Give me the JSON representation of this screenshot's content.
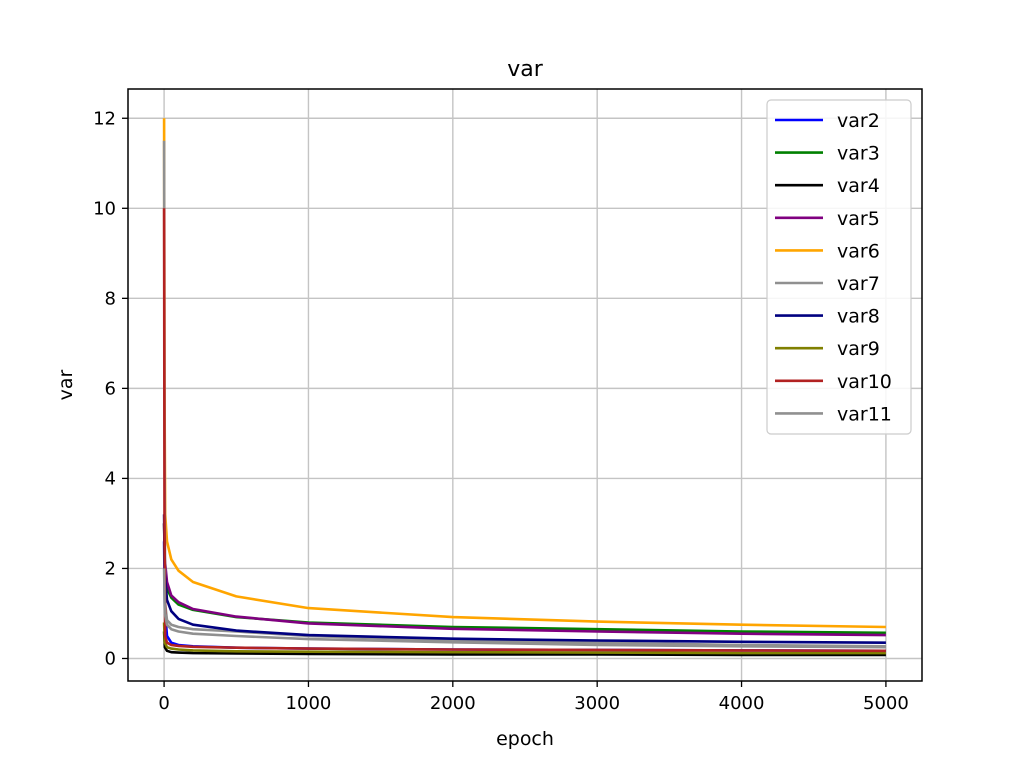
{
  "chart_data": {
    "type": "line",
    "title": "var",
    "xlabel": "epoch",
    "ylabel": "var",
    "xlim": [
      -250,
      5250
    ],
    "ylim": [
      -0.5,
      12.65
    ],
    "xticks": [
      "0",
      "1000",
      "2000",
      "3000",
      "4000",
      "5000"
    ],
    "yticks": [
      "0",
      "2",
      "4",
      "6",
      "8",
      "10",
      "12"
    ],
    "xtick_values": [
      0,
      1000,
      2000,
      3000,
      4000,
      5000
    ],
    "ytick_values": [
      0,
      2,
      4,
      6,
      8,
      10,
      12
    ],
    "grid": true,
    "legend_position": "upper right",
    "series": [
      {
        "name": "var2",
        "color": "#0000ff",
        "x": [
          0,
          5,
          20,
          50,
          100,
          200,
          500,
          1000,
          2000,
          3000,
          4000,
          5000
        ],
        "y": [
          2.6,
          1.1,
          0.5,
          0.35,
          0.3,
          0.27,
          0.24,
          0.22,
          0.2,
          0.19,
          0.18,
          0.17
        ]
      },
      {
        "name": "var3",
        "color": "#008000",
        "x": [
          0,
          5,
          20,
          50,
          100,
          200,
          500,
          1000,
          2000,
          3000,
          4000,
          5000
        ],
        "y": [
          3.0,
          2.0,
          1.55,
          1.35,
          1.2,
          1.08,
          0.92,
          0.8,
          0.7,
          0.65,
          0.6,
          0.57
        ]
      },
      {
        "name": "var4",
        "color": "#000000",
        "x": [
          0,
          5,
          20,
          50,
          100,
          200,
          500,
          1000,
          2000,
          3000,
          4000,
          5000
        ],
        "y": [
          0.6,
          0.25,
          0.17,
          0.14,
          0.13,
          0.12,
          0.11,
          0.1,
          0.09,
          0.09,
          0.08,
          0.08
        ]
      },
      {
        "name": "var5",
        "color": "#800080",
        "x": [
          0,
          5,
          20,
          50,
          100,
          200,
          500,
          1000,
          2000,
          3000,
          4000,
          5000
        ],
        "y": [
          3.0,
          2.2,
          1.7,
          1.4,
          1.25,
          1.1,
          0.93,
          0.78,
          0.66,
          0.6,
          0.55,
          0.52
        ]
      },
      {
        "name": "var6",
        "color": "#ffa500",
        "x": [
          0,
          3,
          8,
          20,
          50,
          100,
          200,
          500,
          1000,
          2000,
          3000,
          4000,
          5000
        ],
        "y": [
          12.0,
          6.0,
          3.2,
          2.6,
          2.2,
          1.95,
          1.7,
          1.38,
          1.12,
          0.92,
          0.82,
          0.75,
          0.7
        ]
      },
      {
        "name": "var7",
        "color": "#909090",
        "x": [
          0,
          3,
          8,
          20,
          50,
          100,
          200,
          500,
          1000,
          2000,
          3000,
          4000,
          5000
        ],
        "y": [
          11.5,
          5.0,
          1.2,
          0.85,
          0.75,
          0.7,
          0.65,
          0.6,
          0.5,
          0.4,
          0.35,
          0.3,
          0.27
        ]
      },
      {
        "name": "var8",
        "color": "#000080",
        "x": [
          0,
          5,
          20,
          50,
          100,
          200,
          500,
          1000,
          2000,
          3000,
          4000,
          5000
        ],
        "y": [
          3.2,
          1.9,
          1.3,
          1.05,
          0.88,
          0.75,
          0.62,
          0.52,
          0.44,
          0.4,
          0.37,
          0.35
        ]
      },
      {
        "name": "var9",
        "color": "#808000",
        "x": [
          0,
          5,
          20,
          50,
          100,
          200,
          500,
          1000,
          2000,
          3000,
          4000,
          5000
        ],
        "y": [
          0.8,
          0.35,
          0.25,
          0.22,
          0.2,
          0.18,
          0.16,
          0.15,
          0.14,
          0.13,
          0.12,
          0.12
        ]
      },
      {
        "name": "var10",
        "color": "#b22222",
        "x": [
          0,
          3,
          8,
          20,
          50,
          100,
          200,
          500,
          1000,
          2000,
          3000,
          4000,
          5000
        ],
        "y": [
          10.0,
          3.0,
          0.5,
          0.35,
          0.3,
          0.28,
          0.26,
          0.24,
          0.22,
          0.2,
          0.19,
          0.18,
          0.17
        ]
      },
      {
        "name": "var11",
        "color": "#909090",
        "x": [
          0,
          5,
          20,
          50,
          100,
          200,
          500,
          1000,
          2000,
          3000,
          4000,
          5000
        ],
        "y": [
          2.0,
          1.0,
          0.75,
          0.65,
          0.6,
          0.55,
          0.5,
          0.43,
          0.36,
          0.3,
          0.27,
          0.25
        ]
      }
    ]
  }
}
